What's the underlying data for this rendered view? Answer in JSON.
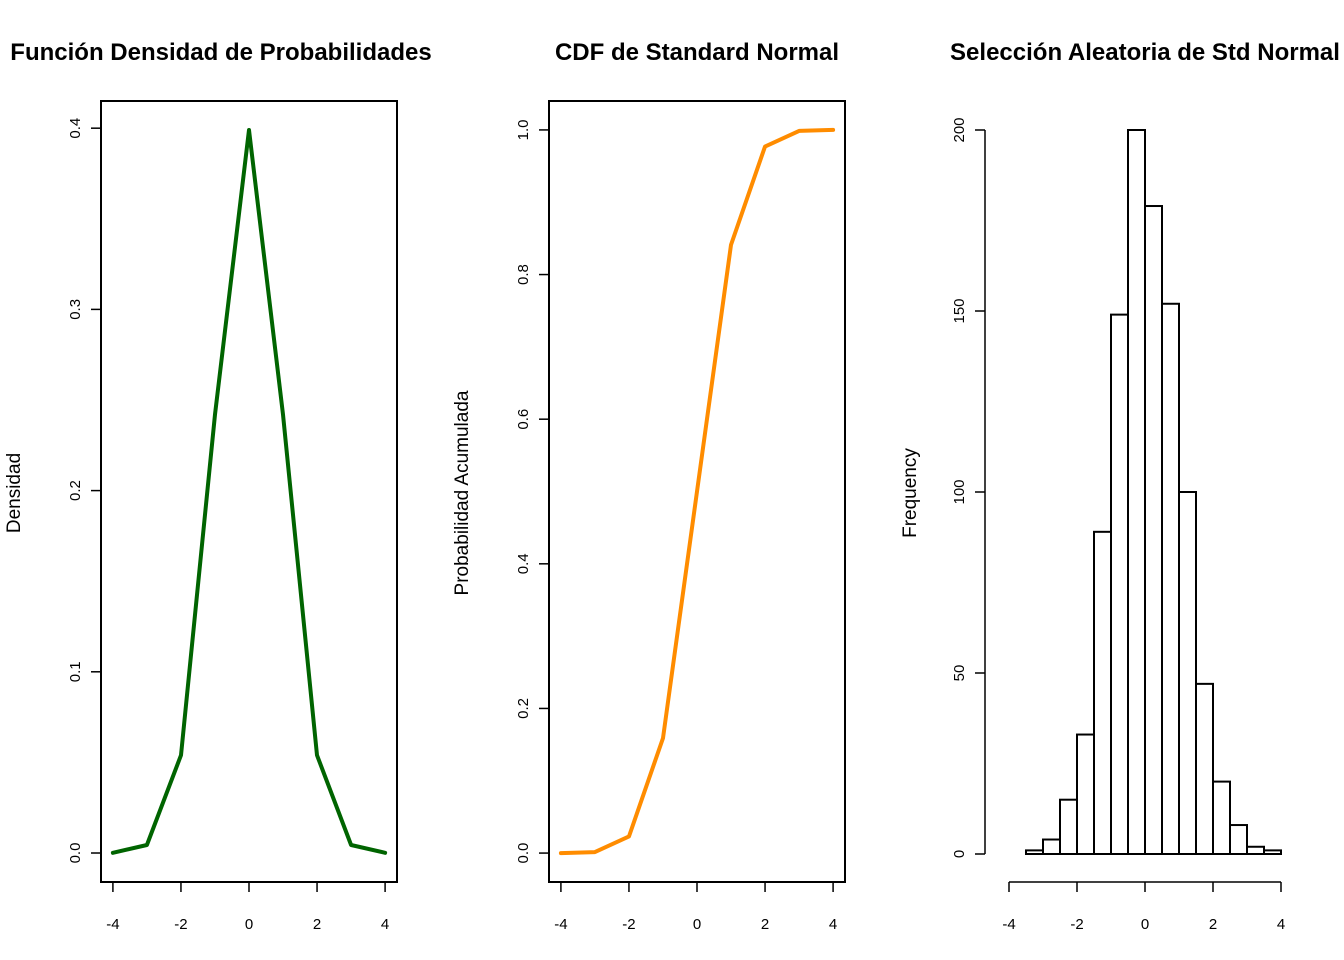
{
  "chart_data": [
    {
      "type": "line",
      "title": "Función Densidad de Probabilidades",
      "xlabel": "",
      "ylabel": "Densidad",
      "color": "#006400",
      "x": [
        -4,
        -3,
        -2,
        -1,
        0,
        1,
        2,
        3,
        4
      ],
      "y": [
        0.0001,
        0.0044,
        0.054,
        0.242,
        0.399,
        0.242,
        0.054,
        0.0044,
        0.0001
      ],
      "xlim": [
        -4.35,
        4.35
      ],
      "ylim": [
        -0.016,
        0.415
      ],
      "xticks": [
        "-4",
        "-2",
        "0",
        "2",
        "4"
      ],
      "xtick_values": [
        -4,
        -2,
        0,
        2,
        4
      ],
      "yticks": [
        "0.0",
        "0.1",
        "0.2",
        "0.3",
        "0.4"
      ],
      "ytick_values": [
        0,
        0.1,
        0.2,
        0.3,
        0.4
      ],
      "framed": true
    },
    {
      "type": "line",
      "title": "CDF de Standard Normal",
      "xlabel": "",
      "ylabel": "Probabilidad Acumulada",
      "color": "#FF8C00",
      "x": [
        -4,
        -3,
        -2,
        -1,
        0,
        1,
        2,
        3,
        4
      ],
      "y": [
        3e-05,
        0.0013,
        0.023,
        0.159,
        0.5,
        0.841,
        0.977,
        0.9987,
        0.99997
      ],
      "xlim": [
        -4.35,
        4.35
      ],
      "ylim": [
        -0.04,
        1.04
      ],
      "xticks": [
        "-4",
        "-2",
        "0",
        "2",
        "4"
      ],
      "xtick_values": [
        -4,
        -2,
        0,
        2,
        4
      ],
      "yticks": [
        "0.0",
        "0.2",
        "0.4",
        "0.6",
        "0.8",
        "1.0"
      ],
      "ytick_values": [
        0,
        0.2,
        0.4,
        0.6,
        0.8,
        1.0
      ],
      "framed": true
    },
    {
      "type": "histogram",
      "title": "Selección Aleatoria de Std Normal",
      "xlabel": "",
      "ylabel": "Frequency",
      "bin_edges": [
        -3.5,
        -3,
        -2.5,
        -2,
        -1.5,
        -1,
        -0.5,
        0,
        0.5,
        1,
        1.5,
        2,
        2.5,
        3,
        3.5,
        4
      ],
      "counts": [
        1,
        4,
        15,
        33,
        89,
        149,
        200,
        179,
        152,
        100,
        47,
        20,
        8,
        2,
        1
      ],
      "xlim": [
        -4,
        4
      ],
      "ylim": [
        0,
        200
      ],
      "xticks": [
        "-4",
        "-2",
        "0",
        "2",
        "4"
      ],
      "xtick_values": [
        -4,
        -2,
        0,
        2,
        4
      ],
      "yticks": [
        "0",
        "50",
        "100",
        "150",
        "200"
      ],
      "ytick_values": [
        0,
        50,
        100,
        150,
        200
      ],
      "framed": false
    }
  ]
}
